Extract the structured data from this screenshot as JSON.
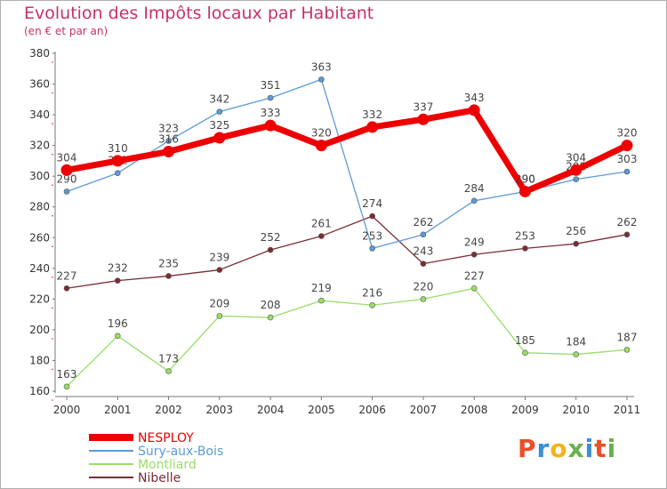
{
  "header": {
    "title": "Evolution des Impôts locaux par Habitant",
    "subtitle": "(en € et par an)"
  },
  "logo": {
    "text": "Proxiti",
    "colors": [
      "#e8502a",
      "#3a8ed6",
      "#f2b21c",
      "#6ab04c",
      "#3a8ed6",
      "#e8502a",
      "#6ab04c"
    ]
  },
  "chart_data": {
    "type": "line",
    "title": "Evolution des Impôts locaux par Habitant",
    "subtitle": "(en € et par an)",
    "xlabel": "",
    "ylabel": "",
    "ylim": [
      160,
      380
    ],
    "yticks": [
      160,
      180,
      200,
      220,
      240,
      260,
      280,
      300,
      320,
      340,
      360,
      380
    ],
    "x": [
      "2000",
      "2001",
      "2002",
      "2003",
      "2004",
      "2005",
      "2006",
      "2007",
      "2008",
      "2009",
      "2010",
      "2011"
    ],
    "grid": false,
    "legend_position": "bottom-left",
    "series": [
      {
        "name": "Nibelle",
        "color": "#7b2d33",
        "values": [
          227,
          232,
          235,
          239,
          252,
          261,
          274,
          243,
          249,
          253,
          256,
          262
        ]
      },
      {
        "name": "Montliard",
        "color": "#99dd66",
        "values": [
          163,
          196,
          173,
          209,
          208,
          219,
          216,
          220,
          227,
          185,
          184,
          187
        ]
      },
      {
        "name": "Sury-aux-Bois",
        "color": "#5b9bd5",
        "values": [
          290,
          302,
          323,
          342,
          351,
          363,
          253,
          262,
          284,
          290,
          298,
          303
        ]
      },
      {
        "name": "NESPLOY",
        "color": "#ee0000",
        "values": [
          304,
          310,
          316,
          325,
          333,
          320,
          332,
          337,
          343,
          290,
          304,
          320
        ]
      }
    ],
    "legend": [
      "NESPLOY",
      "Sury-aux-Bois",
      "Montliard",
      "Nibelle"
    ]
  }
}
